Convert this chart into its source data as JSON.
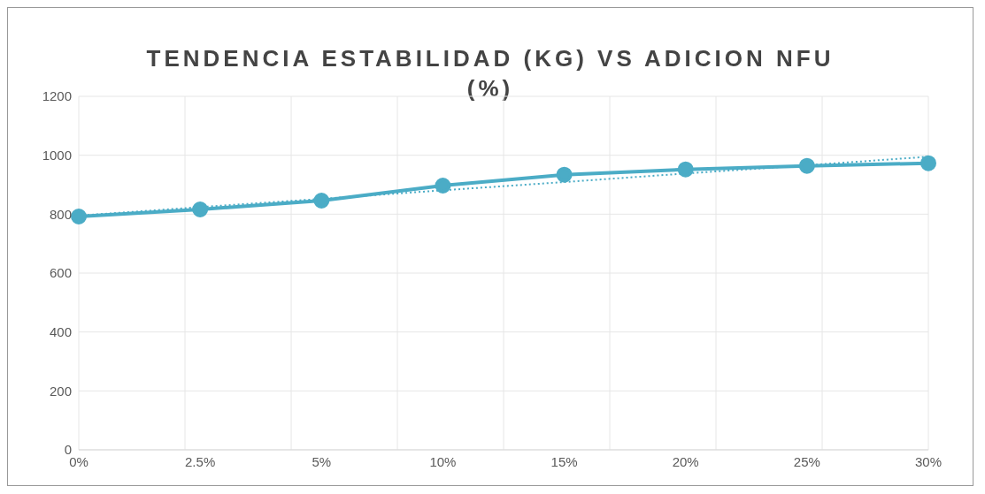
{
  "chart_data": {
    "type": "line",
    "title": "TENDENCIA ESTABILIDAD (KG)  VS ADICION NFU (%)",
    "categories": [
      "0%",
      "2.5%",
      "5%",
      "10%",
      "15%",
      "20%",
      "25%",
      "30%"
    ],
    "series": [
      {
        "color": "#4bacc6",
        "values": [
          792,
          816,
          846,
          897,
          934,
          952,
          964,
          973
        ],
        "marker": "circle",
        "line_style": "solid"
      },
      {
        "type": "line",
        "color": "#4bacc6",
        "values": [
          795,
          824,
          852,
          881,
          909,
          938,
          966,
          995
        ],
        "marker": "none",
        "line_style": "dotted"
      }
    ],
    "ylim": [
      0,
      1200
    ],
    "yticks": [
      0,
      200,
      400,
      600,
      800,
      1000,
      1200
    ],
    "grid": true,
    "legend": false
  }
}
